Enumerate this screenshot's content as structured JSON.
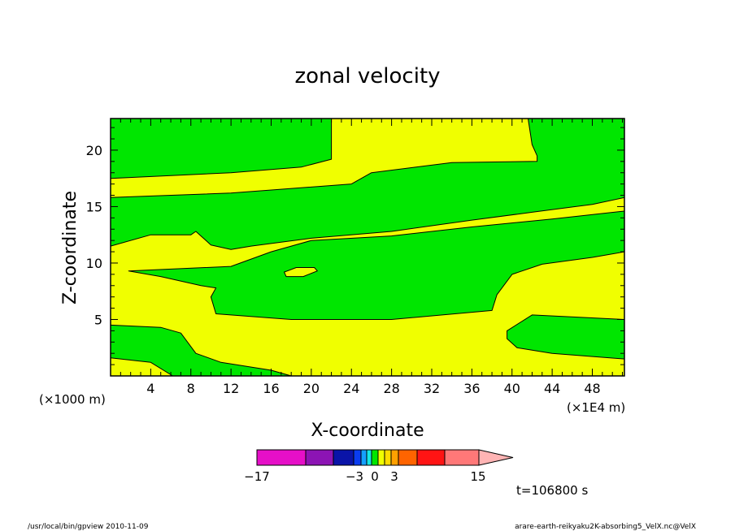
{
  "chart_data": {
    "type": "contour",
    "title": "zonal velocity",
    "xlabel": "X-coordinate",
    "ylabel": "Z-coordinate",
    "x_unit_label": "(×1E4 m)",
    "y_unit_label": "(×1000 m)",
    "xlim": [
      0,
      51.2
    ],
    "ylim": [
      0,
      22.8
    ],
    "x_ticks": [
      "4",
      "8",
      "12",
      "16",
      "20",
      "24",
      "28",
      "32",
      "36",
      "40",
      "44",
      "48"
    ],
    "y_ticks": [
      "5",
      "10",
      "15",
      "20"
    ],
    "time_label": "t=106800 s",
    "colors": {
      "green_band": "#00e600",
      "yellow_band": "#f0ff00",
      "frame": "#000000"
    },
    "colorbar": {
      "tick_labels": [
        "−17",
        "−3",
        "0",
        "3",
        "15"
      ],
      "swatches": [
        "#e60fc8",
        "#8c14b4",
        "#0a14a8",
        "#0a3cf0",
        "#14a0ff",
        "#14e6e6",
        "#00e600",
        "#f0ff00",
        "#ffdc00",
        "#ffa000",
        "#ff6400",
        "#ff1414",
        "#ff7878",
        "#ffb4b4"
      ]
    },
    "regions": [
      {
        "value_band": "green",
        "points": [
          [
            0,
            22.8
          ],
          [
            22,
            22.8
          ],
          [
            22,
            19.2
          ],
          [
            19,
            18.5
          ],
          [
            12,
            18.0
          ],
          [
            0,
            17.5
          ]
        ]
      },
      {
        "value_band": "green",
        "points": [
          [
            0,
            15.8
          ],
          [
            12,
            16.2
          ],
          [
            24,
            17.0
          ],
          [
            26,
            18.0
          ],
          [
            34,
            18.9
          ],
          [
            42.5,
            19.0
          ],
          [
            42.5,
            19.5
          ],
          [
            42,
            20.5
          ],
          [
            41.6,
            22.8
          ],
          [
            51.2,
            22.8
          ],
          [
            51.2,
            15.8
          ],
          [
            48,
            15.2
          ],
          [
            42,
            14.5
          ],
          [
            36,
            13.8
          ],
          [
            28,
            12.8
          ],
          [
            20,
            12.2
          ],
          [
            14,
            11.5
          ],
          [
            12,
            11.2
          ],
          [
            10,
            11.6
          ],
          [
            8.5,
            12.8
          ],
          [
            8,
            12.5
          ],
          [
            4,
            12.5
          ],
          [
            0,
            11.5
          ]
        ]
      },
      {
        "value_band": "green",
        "points": [
          [
            1.8,
            9.3
          ],
          [
            12,
            9.7
          ],
          [
            16,
            11.0
          ],
          [
            20,
            12.0
          ],
          [
            28,
            12.4
          ],
          [
            36,
            13.2
          ],
          [
            44,
            13.9
          ],
          [
            51.2,
            14.6
          ],
          [
            51.2,
            11.0
          ],
          [
            48,
            10.5
          ],
          [
            43,
            9.9
          ],
          [
            40,
            9.0
          ],
          [
            38.5,
            7.2
          ],
          [
            38,
            5.8
          ],
          [
            28,
            5.0
          ],
          [
            18,
            5.0
          ],
          [
            10.5,
            5.5
          ],
          [
            10,
            7.0
          ],
          [
            10.5,
            7.8
          ],
          [
            9,
            8.0
          ],
          [
            5,
            8.8
          ]
        ]
      },
      {
        "value_band": "yellow",
        "points": [
          [
            17.3,
            9.2
          ],
          [
            18.5,
            9.6
          ],
          [
            20.3,
            9.6
          ],
          [
            20.6,
            9.3
          ],
          [
            19.2,
            8.8
          ],
          [
            17.5,
            8.8
          ]
        ]
      },
      {
        "value_band": "green",
        "points": [
          [
            39.5,
            4.0
          ],
          [
            42,
            5.4
          ],
          [
            51.2,
            5.0
          ],
          [
            51.2,
            1.5
          ],
          [
            44,
            2.0
          ],
          [
            40.5,
            2.5
          ],
          [
            39.5,
            3.3
          ]
        ]
      },
      {
        "value_band": "green",
        "points": [
          [
            0,
            4.5
          ],
          [
            5,
            4.3
          ],
          [
            7,
            3.8
          ],
          [
            8.5,
            2.0
          ],
          [
            11,
            1.2
          ],
          [
            16,
            0.5
          ],
          [
            18,
            0
          ],
          [
            0,
            0
          ]
        ]
      },
      {
        "value_band": "yellow",
        "points": [
          [
            0,
            1.6
          ],
          [
            4,
            1.2
          ],
          [
            6.2,
            0
          ],
          [
            0,
            0
          ]
        ]
      }
    ]
  },
  "footer": {
    "left": "/usr/local/bin/gpview 2010-11-09",
    "right": "arare-earth-reikyaku2K-absorbing5_VelX.nc@VelX"
  }
}
